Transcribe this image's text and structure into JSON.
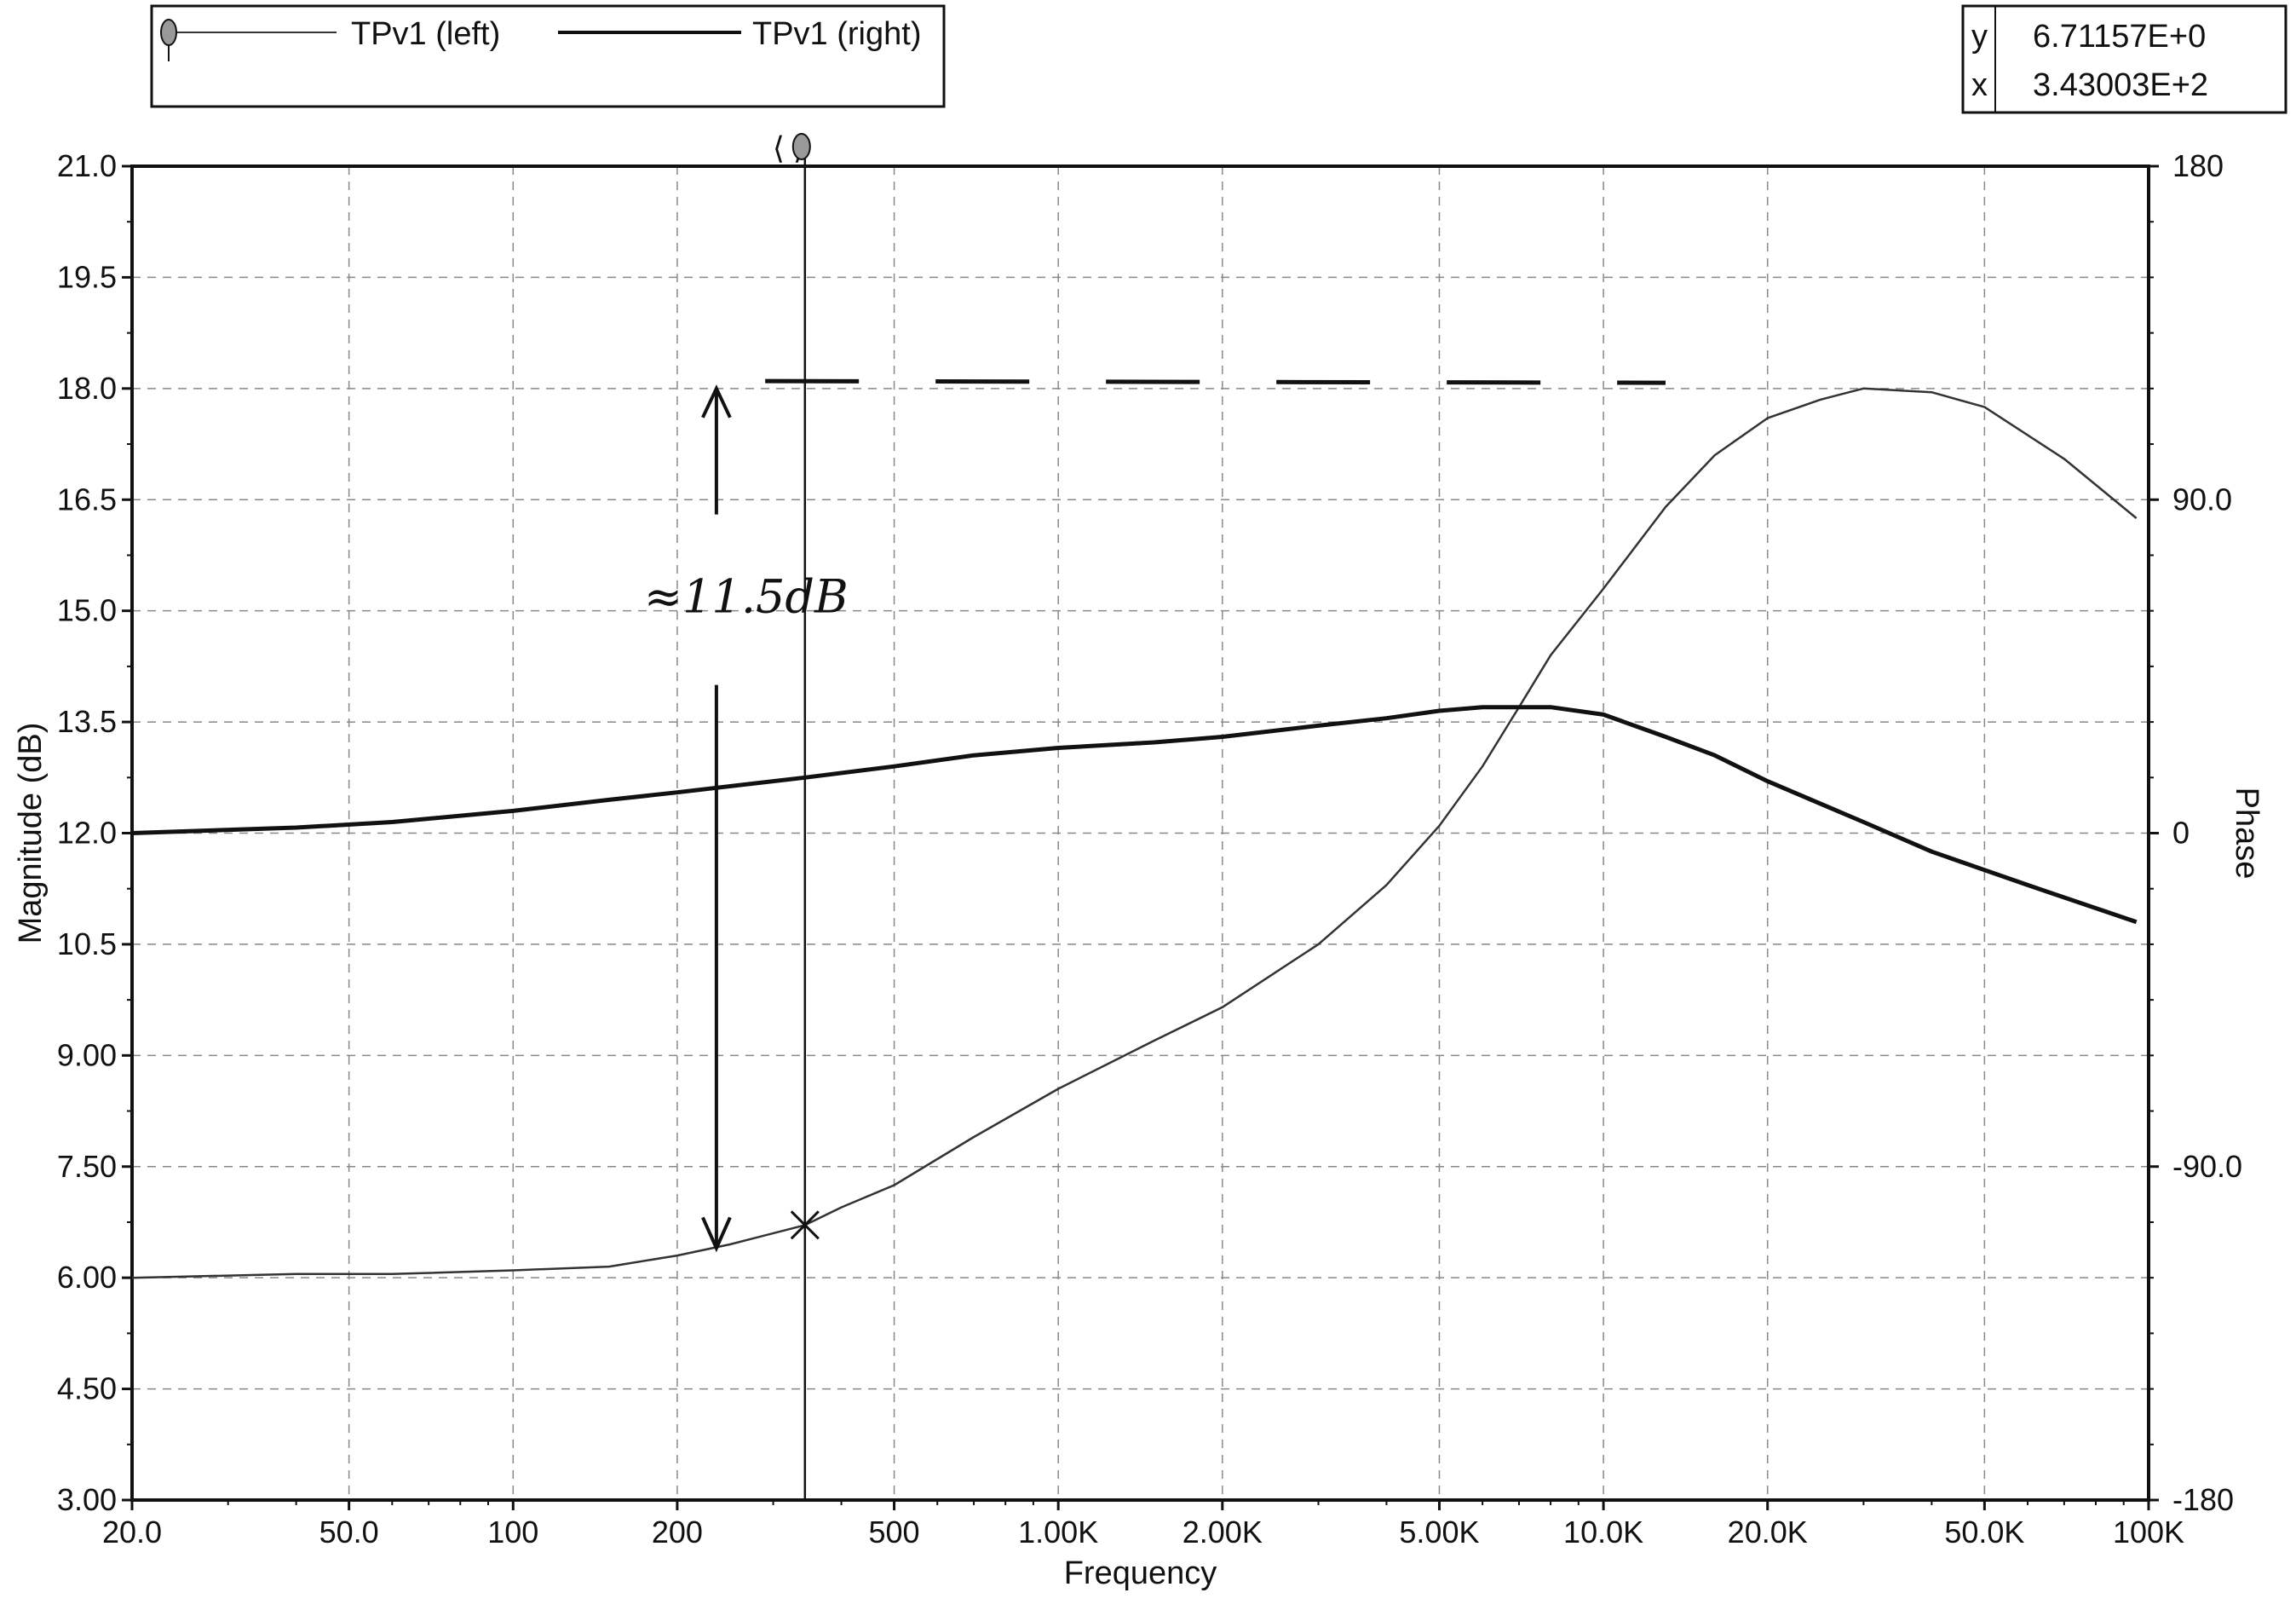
{
  "legend": {
    "left_label": "TPv1 (left)",
    "right_label": "TPv1 (right)"
  },
  "readout": {
    "y_label": "y",
    "y_value": "6.71157E+0",
    "x_label": "x",
    "x_value": "3.43003E+2"
  },
  "annotation": {
    "text": "≈11.5dB"
  },
  "chart_data": {
    "type": "line",
    "xlabel": "Frequency",
    "ylabel": "Magnitude  (dB)",
    "y2label": "Phase",
    "xscale": "log",
    "xlim": [
      20,
      100000
    ],
    "ylim": [
      3.0,
      21.0
    ],
    "y2lim": [
      -180,
      180
    ],
    "grid": true,
    "legend_position": "top-left",
    "x_ticks": [
      {
        "value": 20,
        "label": "20.0"
      },
      {
        "value": 50,
        "label": "50.0"
      },
      {
        "value": 100,
        "label": "100"
      },
      {
        "value": 200,
        "label": "200"
      },
      {
        "value": 500,
        "label": "500"
      },
      {
        "value": 1000,
        "label": "1.00K"
      },
      {
        "value": 2000,
        "label": "2.00K"
      },
      {
        "value": 5000,
        "label": "5.00K"
      },
      {
        "value": 10000,
        "label": "10.0K"
      },
      {
        "value": 20000,
        "label": "20.0K"
      },
      {
        "value": 50000,
        "label": "50.0K"
      },
      {
        "value": 100000,
        "label": "100K"
      }
    ],
    "y_ticks": [
      {
        "value": 21.0,
        "label": "21.0"
      },
      {
        "value": 19.5,
        "label": "19.5"
      },
      {
        "value": 18.0,
        "label": "18.0"
      },
      {
        "value": 16.5,
        "label": "16.5"
      },
      {
        "value": 15.0,
        "label": "15.0"
      },
      {
        "value": 13.5,
        "label": "13.5"
      },
      {
        "value": 12.0,
        "label": "12.0"
      },
      {
        "value": 10.5,
        "label": "10.5"
      },
      {
        "value": 9.0,
        "label": "9.00"
      },
      {
        "value": 7.5,
        "label": "7.50"
      },
      {
        "value": 6.0,
        "label": "6.00"
      },
      {
        "value": 4.5,
        "label": "4.50"
      },
      {
        "value": 3.0,
        "label": "3.00"
      }
    ],
    "y2_ticks": [
      {
        "value": 180,
        "label": "180"
      },
      {
        "value": 90,
        "label": "90.0"
      },
      {
        "value": 0,
        "label": "0"
      },
      {
        "value": -90,
        "label": "-90.0"
      },
      {
        "value": -180,
        "label": "-180"
      }
    ],
    "cursor": {
      "x": 343.003,
      "y": 6.71157
    },
    "reference_level_db": 18.1,
    "series": [
      {
        "name": "TPv1 (left)",
        "axis": "left",
        "style": "thin",
        "x": [
          20,
          40,
          60,
          100,
          150,
          200,
          250,
          343,
          400,
          500,
          700,
          1000,
          1500,
          2000,
          3000,
          4000,
          5000,
          6000,
          7000,
          8000,
          10000,
          13000,
          16000,
          20000,
          25000,
          30000,
          40000,
          50000,
          70000,
          95000
        ],
        "y": [
          6.0,
          6.05,
          6.05,
          6.1,
          6.15,
          6.3,
          6.45,
          6.71,
          6.95,
          7.25,
          7.9,
          8.55,
          9.2,
          9.65,
          10.5,
          11.3,
          12.1,
          12.9,
          13.7,
          14.4,
          15.3,
          16.4,
          17.1,
          17.6,
          17.85,
          18.0,
          17.95,
          17.75,
          17.05,
          16.25
        ]
      },
      {
        "name": "TPv1 (right)",
        "axis": "right",
        "style": "thick",
        "x": [
          20,
          40,
          60,
          100,
          150,
          200,
          343,
          500,
          700,
          1000,
          1500,
          2000,
          3000,
          4000,
          5000,
          6000,
          7000,
          8000,
          10000,
          13000,
          16000,
          20000,
          30000,
          40000,
          60000,
          95000
        ],
        "y": [
          0,
          1.5,
          3,
          6,
          9,
          11,
          15,
          18,
          21,
          23,
          24.5,
          26,
          29,
          31,
          33,
          34,
          34,
          34,
          32,
          26,
          21,
          14,
          3,
          -5,
          -14,
          -24
        ]
      }
    ]
  }
}
